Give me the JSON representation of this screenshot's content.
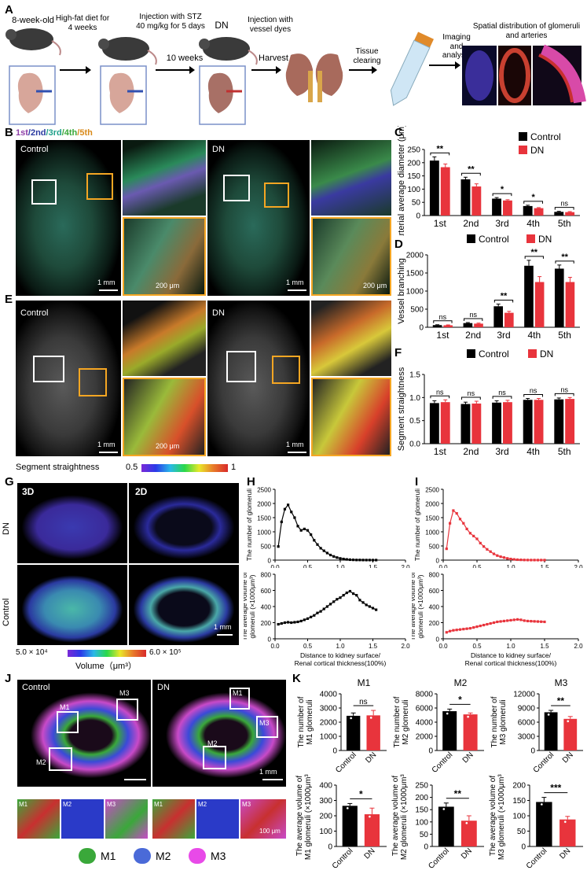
{
  "panels": {
    "A": "A",
    "B": "B",
    "C": "C",
    "D": "D",
    "E": "E",
    "F": "F",
    "G": "G",
    "H": "H",
    "I": "I",
    "J": "J",
    "K": "K"
  },
  "panelA": {
    "step1": "8-week-old",
    "step2": "High-fat diet for 4 weeks",
    "step3": "Injection with STZ 40 mg/kg for 5 days",
    "step4": "10 weeks",
    "step5": "DN",
    "step6": "Injection with vessel dyes",
    "step7": "Harvest",
    "step8": "Tissue clearing",
    "step9": "Imaging and analysis",
    "step10": "Spatial distribution of glomeruli and arteries"
  },
  "panelB": {
    "legend_1st": "1st",
    "legend_2nd": "/2nd",
    "legend_3rd": "/3rd",
    "legend_4th": "/4th",
    "legend_5th": "/5th",
    "control": "Control",
    "dn": "DN",
    "scale_1mm": "1 mm",
    "scale_200um": "200 μm"
  },
  "panelE": {
    "control": "Control",
    "dn": "DN",
    "scale_1mm": "1 mm",
    "scale_200um": "200 μm",
    "colorbar_label": "Segment straightness",
    "colorbar_min": "0.5",
    "colorbar_max": "1"
  },
  "panelG": {
    "label_3d": "3D",
    "label_2d": "2D",
    "row_dn": "DN",
    "row_control": "Control",
    "scale_1mm": "1 mm",
    "colorbar_min": "5.0 × 10⁴",
    "colorbar_max": "6.0 × 10⁵",
    "colorbar_label": "Volume（μm³）"
  },
  "panelJ": {
    "control": "Control",
    "dn": "DN",
    "m1": "M1",
    "m2": "M2",
    "m3": "M3",
    "scale_1mm": "1 mm",
    "scale_100um": "100 μm",
    "legend": [
      "M1",
      "M2",
      "M3"
    ]
  },
  "legend_common": {
    "control": "Control",
    "dn": "DN"
  },
  "colors": {
    "control": "#000000",
    "dn": "#e8343c",
    "purple": "#8e3fa8",
    "blue": "#2a3aa0",
    "teal": "#1fa08a",
    "green": "#3aa83a",
    "orange": "#d98a1a"
  },
  "chart_data": [
    {
      "id": "C",
      "type": "bar",
      "ylabel": "Arterial average diameter (μm)",
      "categories": [
        "1st",
        "2nd",
        "3rd",
        "4th",
        "5th"
      ],
      "ylim": [
        0,
        250
      ],
      "yticks": [
        0,
        50,
        100,
        150,
        200,
        250
      ],
      "series": [
        {
          "name": "Control",
          "values": [
            208,
            137,
            64,
            36,
            14
          ],
          "err": [
            14,
            8,
            4,
            3,
            2
          ]
        },
        {
          "name": "DN",
          "values": [
            183,
            110,
            57,
            28,
            13
          ],
          "err": [
            12,
            10,
            3,
            2,
            2
          ]
        }
      ],
      "sig": [
        "**",
        "**",
        "*",
        "*",
        "ns"
      ],
      "legend": "top-right"
    },
    {
      "id": "D",
      "type": "bar",
      "ylabel": "Vessel branching",
      "categories": [
        "1st",
        "2nd",
        "3rd",
        "4th",
        "5th"
      ],
      "ylim": [
        0,
        2000
      ],
      "yticks": [
        0,
        500,
        1000,
        1500,
        2000
      ],
      "series": [
        {
          "name": "Control",
          "values": [
            60,
            115,
            580,
            1700,
            1620
          ],
          "err": [
            10,
            15,
            60,
            150,
            100
          ]
        },
        {
          "name": "DN",
          "values": [
            55,
            100,
            400,
            1250,
            1250
          ],
          "err": [
            10,
            15,
            40,
            150,
            130
          ]
        }
      ],
      "sig": [
        "ns",
        "ns",
        "**",
        "**",
        "**"
      ],
      "legend": "top"
    },
    {
      "id": "F",
      "type": "bar",
      "ylabel": "Segment straightness",
      "categories": [
        "1st",
        "2nd",
        "3rd",
        "4th",
        "5th"
      ],
      "ylim": [
        0,
        1.5
      ],
      "yticks": [
        "0.0",
        "0.5",
        "1.0",
        "1.5"
      ],
      "series": [
        {
          "name": "Control",
          "values": [
            0.88,
            0.86,
            0.89,
            0.95,
            0.96
          ],
          "err": [
            0.05,
            0.04,
            0.04,
            0.03,
            0.03
          ]
        },
        {
          "name": "DN",
          "values": [
            0.9,
            0.87,
            0.9,
            0.95,
            0.97
          ],
          "err": [
            0.05,
            0.05,
            0.04,
            0.03,
            0.03
          ]
        }
      ],
      "sig": [
        "ns",
        "ns",
        "ns",
        "ns",
        "ns"
      ],
      "legend": "top"
    },
    {
      "id": "H_top",
      "type": "line",
      "ylabel": "The number of glomeruli",
      "xlim": [
        0,
        2.0
      ],
      "xticks": [
        "0.0",
        "0.5",
        "1.0",
        "1.5",
        "2.0"
      ],
      "ylim": [
        0,
        2500
      ],
      "yticks": [
        0,
        500,
        1000,
        1500,
        2000,
        2500
      ],
      "x": [
        0.05,
        0.1,
        0.15,
        0.2,
        0.25,
        0.3,
        0.35,
        0.4,
        0.45,
        0.5,
        0.55,
        0.6,
        0.65,
        0.7,
        0.75,
        0.8,
        0.85,
        0.9,
        0.95,
        1.0,
        1.05,
        1.1,
        1.15,
        1.2,
        1.25,
        1.3,
        1.35,
        1.4,
        1.45,
        1.5,
        1.55
      ],
      "series": [
        {
          "name": "",
          "values": [
            480,
            1350,
            1800,
            1950,
            1700,
            1500,
            1200,
            1050,
            1100,
            1050,
            900,
            700,
            550,
            420,
            330,
            250,
            180,
            130,
            90,
            60,
            40,
            25,
            15,
            10,
            5,
            5,
            3,
            2,
            2,
            1,
            1
          ],
          "color": "#000000"
        }
      ]
    },
    {
      "id": "H_bottom",
      "type": "line",
      "ylabel": "The average volume of glomeruli (×1000μm³)",
      "xlabel": "Distance to kidney surface/ Renal cortical thickness(100%)",
      "xlim": [
        0,
        2.0
      ],
      "xticks": [
        "0.0",
        "0.5",
        "1.0",
        "1.5",
        "2.0"
      ],
      "ylim": [
        0,
        800
      ],
      "yticks": [
        0,
        200,
        400,
        600,
        800
      ],
      "x": [
        0.05,
        0.1,
        0.15,
        0.2,
        0.25,
        0.3,
        0.35,
        0.4,
        0.45,
        0.5,
        0.55,
        0.6,
        0.65,
        0.7,
        0.75,
        0.8,
        0.85,
        0.9,
        0.95,
        1.0,
        1.05,
        1.1,
        1.15,
        1.2,
        1.25,
        1.3,
        1.35,
        1.4,
        1.45,
        1.5,
        1.55
      ],
      "series": [
        {
          "name": "",
          "values": [
            180,
            190,
            200,
            205,
            200,
            205,
            210,
            220,
            235,
            250,
            270,
            290,
            320,
            340,
            370,
            400,
            430,
            460,
            490,
            510,
            540,
            570,
            590,
            560,
            540,
            480,
            450,
            420,
            400,
            380,
            360
          ],
          "color": "#000000"
        }
      ]
    },
    {
      "id": "I_top",
      "type": "line",
      "ylabel": "The number of glomeruli",
      "xlim": [
        0,
        2.0
      ],
      "xticks": [
        "0.0",
        "0.5",
        "1.0",
        "1.5",
        "2.0"
      ],
      "ylim": [
        0,
        2500
      ],
      "yticks": [
        0,
        500,
        1000,
        1500,
        2000,
        2500
      ],
      "x": [
        0.05,
        0.1,
        0.15,
        0.2,
        0.25,
        0.3,
        0.35,
        0.4,
        0.45,
        0.5,
        0.55,
        0.6,
        0.65,
        0.7,
        0.75,
        0.8,
        0.85,
        0.9,
        0.95,
        1.0,
        1.05,
        1.1,
        1.15,
        1.2,
        1.25,
        1.3,
        1.35,
        1.4,
        1.45,
        1.5
      ],
      "series": [
        {
          "name": "",
          "values": [
            400,
            1300,
            1750,
            1650,
            1450,
            1300,
            1100,
            950,
            850,
            750,
            600,
            480,
            380,
            300,
            220,
            160,
            120,
            90,
            60,
            40,
            25,
            15,
            10,
            5,
            3,
            2,
            2,
            1,
            1,
            1
          ],
          "color": "#e8343c"
        }
      ]
    },
    {
      "id": "I_bottom",
      "type": "line",
      "ylabel": "The average volume of glomeruli (×1000μm³)",
      "xlabel": "Distance to kidney surface/ Renal cortical thickness(100%)",
      "xlim": [
        0,
        2.0
      ],
      "xticks": [
        "0.0",
        "0.5",
        "1.0",
        "1.5",
        "2.0"
      ],
      "ylim": [
        0,
        800
      ],
      "yticks": [
        0,
        200,
        400,
        600,
        800
      ],
      "x": [
        0.05,
        0.1,
        0.15,
        0.2,
        0.25,
        0.3,
        0.35,
        0.4,
        0.45,
        0.5,
        0.55,
        0.6,
        0.65,
        0.7,
        0.75,
        0.8,
        0.85,
        0.9,
        0.95,
        1.0,
        1.05,
        1.1,
        1.15,
        1.2,
        1.25,
        1.3,
        1.35,
        1.4,
        1.45,
        1.5
      ],
      "series": [
        {
          "name": "",
          "values": [
            80,
            95,
            105,
            110,
            115,
            120,
            125,
            130,
            140,
            150,
            160,
            170,
            180,
            190,
            200,
            210,
            215,
            220,
            225,
            230,
            235,
            240,
            235,
            225,
            220,
            218,
            216,
            214,
            212,
            210
          ],
          "color": "#e8343c"
        }
      ]
    },
    {
      "id": "K_M1_num",
      "type": "bar",
      "title": "M1",
      "ylabel": "The number of M1 glomeruli",
      "categories": [
        "Control",
        "DN"
      ],
      "ylim": [
        0,
        4000
      ],
      "yticks": [
        0,
        1000,
        2000,
        3000,
        4000
      ],
      "values": [
        2450,
        2480
      ],
      "err": [
        200,
        350
      ],
      "sig": "ns"
    },
    {
      "id": "K_M2_num",
      "type": "bar",
      "title": "M2",
      "ylabel": "The number of M2 glomeruli",
      "categories": [
        "Control",
        "DN"
      ],
      "ylim": [
        0,
        8000
      ],
      "yticks": [
        0,
        2000,
        4000,
        6000,
        8000
      ],
      "values": [
        5550,
        5100
      ],
      "err": [
        300,
        200
      ],
      "sig": "*"
    },
    {
      "id": "K_M3_num",
      "type": "bar",
      "title": "M3",
      "ylabel": "The number of M3 glomeruli",
      "categories": [
        "Control",
        "DN"
      ],
      "ylim": [
        0,
        12000
      ],
      "yticks": [
        0,
        3000,
        6000,
        9000,
        12000
      ],
      "values": [
        8100,
        6700
      ],
      "err": [
        400,
        500
      ],
      "sig": "**"
    },
    {
      "id": "K_M1_vol",
      "type": "bar",
      "ylabel": "The average volume of M1 glomeruli (×1000μm³)",
      "categories": [
        "Control",
        "DN"
      ],
      "ylim": [
        0,
        400
      ],
      "yticks": [
        0,
        100,
        200,
        300,
        400
      ],
      "values": [
        265,
        210
      ],
      "err": [
        15,
        40
      ],
      "sig": "*"
    },
    {
      "id": "K_M2_vol",
      "type": "bar",
      "ylabel": "The average volume of M2 glomeruli (×1000μm³)",
      "categories": [
        "Control",
        "DN"
      ],
      "ylim": [
        0,
        250
      ],
      "yticks": [
        0,
        50,
        100,
        150,
        200,
        250
      ],
      "values": [
        162,
        105
      ],
      "err": [
        15,
        20
      ],
      "sig": "**"
    },
    {
      "id": "K_M3_vol",
      "type": "bar",
      "ylabel": "The average volume of M3 glomeruli (×1000μm³)",
      "categories": [
        "Control",
        "DN"
      ],
      "ylim": [
        0,
        200
      ],
      "yticks": [
        0,
        50,
        100,
        150,
        200
      ],
      "values": [
        145,
        88
      ],
      "err": [
        15,
        10
      ],
      "sig": "***"
    }
  ]
}
